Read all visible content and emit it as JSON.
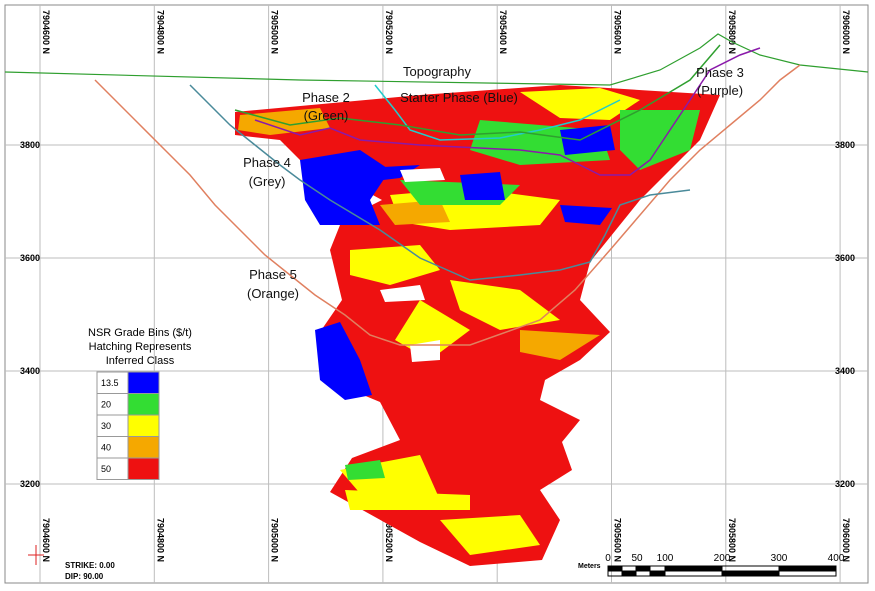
{
  "eastings": [
    "7904600 N",
    "7904800 N",
    "7905000 N",
    "7905200 N",
    "7905400 N",
    "7905600 N",
    "7905800 N",
    "7906000 N"
  ],
  "elevations": [
    "3800",
    "3600",
    "3400",
    "3200"
  ],
  "labels": {
    "topography": "Topography",
    "phase2": [
      "Phase 2",
      "(Green)"
    ],
    "starter": "Starter Phase (Blue)",
    "phase3": [
      "Phase 3",
      "(Purple)"
    ],
    "phase4": [
      "Phase 4",
      "(Grey)"
    ],
    "phase5": [
      "Phase 5",
      "(Orange)"
    ]
  },
  "legend": {
    "title": [
      "NSR Grade Bins ($/t)",
      "Hatching Represents",
      "Inferred Class"
    ],
    "bins": [
      {
        "label": "13.5",
        "color": "#0000ff"
      },
      {
        "label": "20",
        "color": "#33dd33"
      },
      {
        "label": "30",
        "color": "#ffff00"
      },
      {
        "label": "40",
        "color": "#f5a800"
      },
      {
        "label": "50",
        "color": "#ee1111"
      }
    ]
  },
  "footer": {
    "strike": "STRIKE:   0.00",
    "dip": "DIP:   90.00"
  },
  "scale": {
    "unit": "Meters",
    "ticks": [
      "0",
      "50",
      "100",
      "200",
      "300",
      "400"
    ]
  }
}
